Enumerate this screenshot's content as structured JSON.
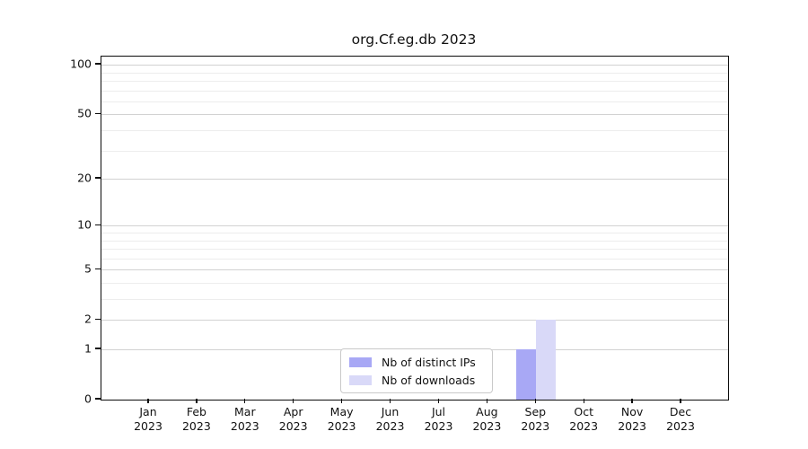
{
  "title": "org.Cf.eg.db 2023",
  "chart_data": {
    "type": "bar",
    "title": "org.Cf.eg.db 2023",
    "categories": [
      "Jan 2023",
      "Feb 2023",
      "Mar 2023",
      "Apr 2023",
      "May 2023",
      "Jun 2023",
      "Jul 2023",
      "Aug 2023",
      "Sep 2023",
      "Oct 2023",
      "Nov 2023",
      "Dec 2023"
    ],
    "series": [
      {
        "name": "Nb of distinct IPs",
        "color": "#a8a8f5",
        "values": [
          0,
          0,
          0,
          0,
          0,
          0,
          0,
          0,
          1,
          0,
          0,
          0
        ]
      },
      {
        "name": "Nb of downloads",
        "color": "#d9d9f8",
        "values": [
          0,
          0,
          0,
          0,
          0,
          0,
          0,
          0,
          2,
          0,
          0,
          0
        ]
      }
    ],
    "y_axis": {
      "scale": "log1p",
      "ticks": [
        0,
        1,
        2,
        5,
        10,
        20,
        50,
        100
      ],
      "minor_ticks": [
        3,
        4,
        6,
        7,
        8,
        9,
        30,
        40,
        60,
        70,
        80,
        90
      ],
      "max": 112
    },
    "xlabel": "",
    "ylabel": "",
    "grid": "horizontal-on",
    "legend_position": "bottom-center-inside",
    "colors": {
      "grid_major": "#d2d2d2",
      "grid_minor": "#ededed",
      "axis": "#0c0c0c",
      "legend_border": "#c9c9c9",
      "background": "#ffffff"
    }
  }
}
